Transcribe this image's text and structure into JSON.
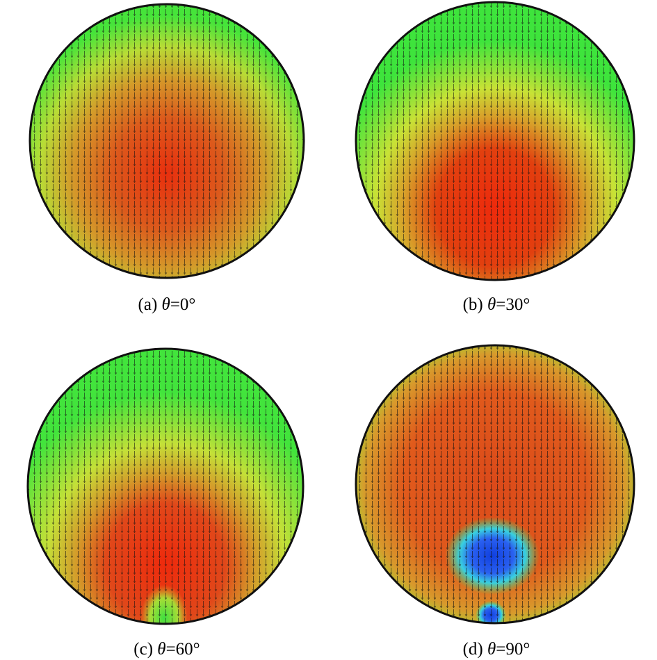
{
  "panels": [
    {
      "label": "(a)",
      "symbol": "θ",
      "value": "=0°"
    },
    {
      "label": "(b)",
      "symbol": "θ",
      "value": "=30°"
    },
    {
      "label": "(c)",
      "symbol": "θ",
      "value": "=60°"
    },
    {
      "label": "(d)",
      "symbol": "θ",
      "value": "=90°"
    }
  ]
}
